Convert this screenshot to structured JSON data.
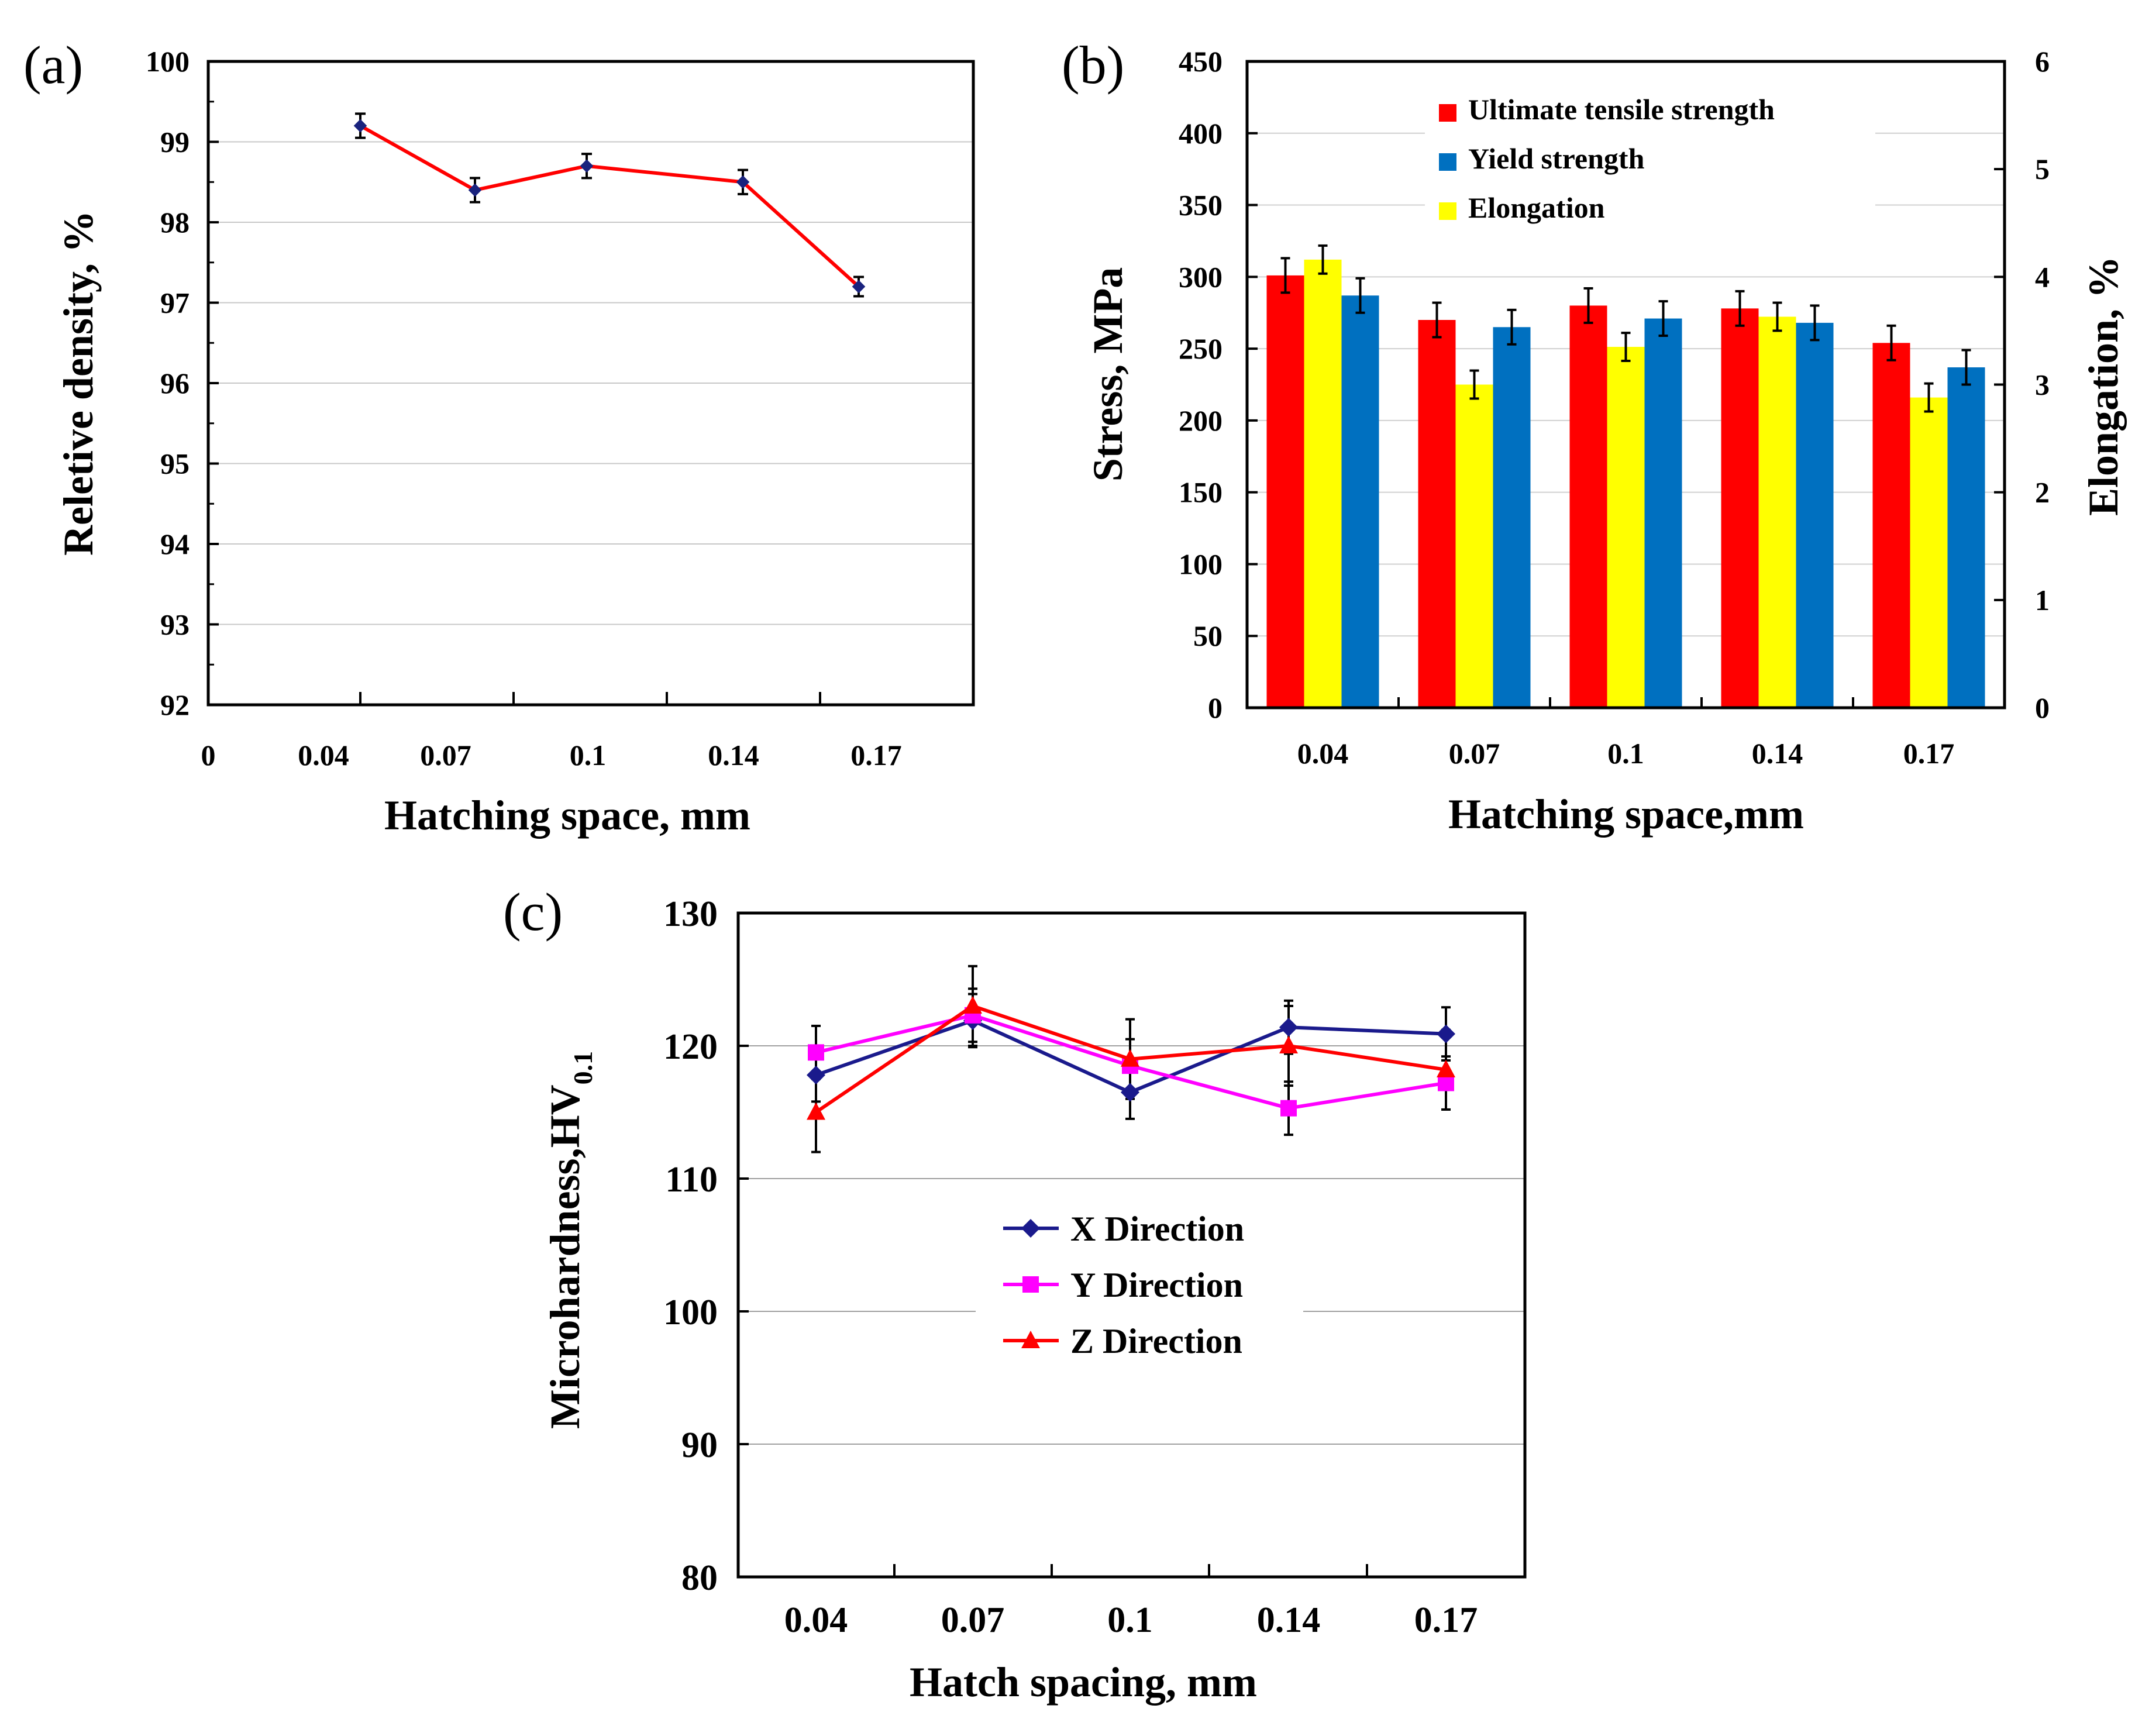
{
  "chart_data": [
    {
      "panel": "(a)",
      "type": "line",
      "xlabel": "Hatching space, mm",
      "ylabel": "Reletive density, %",
      "x_tick_labels": [
        "0",
        "0.04",
        "0.07",
        "0.1",
        "0.14",
        "0.17"
      ],
      "y_tick_labels": [
        "92",
        "93",
        "94",
        "95",
        "96",
        "97",
        "98",
        "99",
        "100"
      ],
      "ylim": [
        92,
        100
      ],
      "categories": [
        "0.04",
        "0.07",
        "0.1",
        "0.14",
        "0.17"
      ],
      "series": [
        {
          "name": "Relative density",
          "color": "#ff0000",
          "marker_color": "#1a237e",
          "values": [
            99.2,
            98.4,
            98.7,
            98.5,
            97.2
          ],
          "errors": [
            0.15,
            0.15,
            0.15,
            0.15,
            0.12
          ]
        }
      ]
    },
    {
      "panel": "(b)",
      "type": "bar",
      "xlabel": "Hatching space,mm",
      "ylabel": "Stress, MPa",
      "y2label": "Elongation, %",
      "categories": [
        "0.04",
        "0.07",
        "0.1",
        "0.14",
        "0.17"
      ],
      "y_tick_labels": [
        "0",
        "50",
        "100",
        "150",
        "200",
        "250",
        "300",
        "350",
        "400",
        "450"
      ],
      "y2_tick_labels": [
        "0",
        "1",
        "2",
        "3",
        "4",
        "5",
        "6"
      ],
      "ylim": [
        0,
        450
      ],
      "y2lim": [
        0,
        6
      ],
      "series": [
        {
          "name": "Ultimate tensile strength",
          "color": "#ff0000",
          "axis": "left",
          "values": [
            301,
            270,
            280,
            278,
            254
          ],
          "errors": [
            12,
            12,
            12,
            12,
            12
          ]
        },
        {
          "name": "Elongation",
          "color": "#ffff00",
          "axis": "right",
          "values": [
            4.16,
            3.0,
            3.35,
            3.63,
            2.88
          ],
          "errors": [
            0.13,
            0.13,
            0.13,
            0.13,
            0.13
          ]
        },
        {
          "name": "Yield strength",
          "color": "#0070c0",
          "axis": "left",
          "values": [
            287,
            265,
            271,
            268,
            237
          ],
          "errors": [
            12,
            12,
            12,
            12,
            12
          ]
        }
      ],
      "legend_order": [
        "Ultimate tensile strength",
        "Yield strength",
        "Elongation"
      ],
      "legend_position": "top-right"
    },
    {
      "panel": "(c)",
      "type": "line",
      "xlabel": "Hatch spacing, mm",
      "ylabel_main": "Microhardness,HV",
      "ylabel_sub": "0.1",
      "categories": [
        "0.04",
        "0.07",
        "0.1",
        "0.14",
        "0.17"
      ],
      "y_tick_labels": [
        "80",
        "90",
        "100",
        "110",
        "120",
        "130"
      ],
      "ylim": [
        80,
        130
      ],
      "series": [
        {
          "name": "X Direction",
          "color": "#1a1a8c",
          "marker": "diamond",
          "values": [
            117.8,
            121.9,
            116.5,
            121.4,
            120.9
          ],
          "errors": [
            2,
            2,
            2,
            2,
            2
          ]
        },
        {
          "name": "Y Direction",
          "color": "#ff00ff",
          "marker": "square",
          "values": [
            119.5,
            122.3,
            118.5,
            115.3,
            117.2
          ],
          "errors": [
            2,
            2,
            2,
            2,
            2
          ]
        },
        {
          "name": "Z Direction",
          "color": "#ff0000",
          "marker": "triangle",
          "values": [
            115.0,
            123.0,
            119.0,
            120.0,
            118.2
          ],
          "errors": [
            3,
            3,
            3,
            3,
            3
          ]
        }
      ],
      "legend_position": "center"
    }
  ]
}
